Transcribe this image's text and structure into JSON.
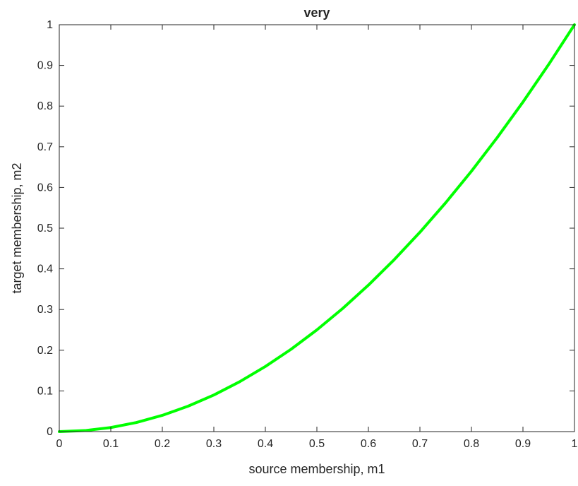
{
  "chart_data": {
    "type": "line",
    "title": "very",
    "xlabel": "source membership, m1",
    "ylabel": "target membership, m2",
    "xlim": [
      0,
      1
    ],
    "ylim": [
      0,
      1
    ],
    "x_ticks": [
      0,
      0.1,
      0.2,
      0.3,
      0.4,
      0.5,
      0.6,
      0.7,
      0.8,
      0.9,
      1
    ],
    "x_tick_labels": [
      "0",
      "0.1",
      "0.2",
      "0.3",
      "0.4",
      "0.5",
      "0.6",
      "0.7",
      "0.8",
      "0.9",
      "1"
    ],
    "y_ticks": [
      0,
      0.1,
      0.2,
      0.3,
      0.4,
      0.5,
      0.6,
      0.7,
      0.8,
      0.9,
      1
    ],
    "y_tick_labels": [
      "0",
      "0.1",
      "0.2",
      "0.3",
      "0.4",
      "0.5",
      "0.6",
      "0.7",
      "0.8",
      "0.9",
      "1"
    ],
    "grid": false,
    "series": [
      {
        "color": "#00ff00",
        "x": [
          0,
          0.05,
          0.1,
          0.15,
          0.2,
          0.25,
          0.3,
          0.35,
          0.4,
          0.45,
          0.5,
          0.55,
          0.6,
          0.65,
          0.7,
          0.75,
          0.8,
          0.85,
          0.9,
          0.95,
          1
        ],
        "y": [
          0,
          0.0025,
          0.01,
          0.0225,
          0.04,
          0.0625,
          0.09,
          0.1225,
          0.16,
          0.2025,
          0.25,
          0.3025,
          0.36,
          0.4225,
          0.49,
          0.5625,
          0.64,
          0.7225,
          0.81,
          0.9025,
          1
        ]
      }
    ]
  }
}
